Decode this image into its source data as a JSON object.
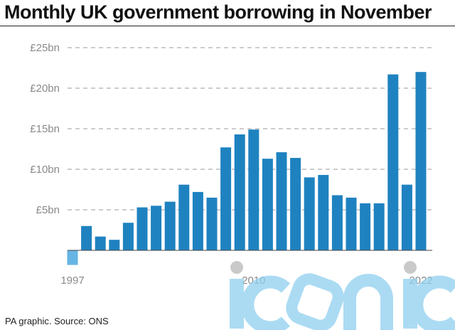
{
  "title": "Monthly UK government borrowing in November",
  "source": "PA graphic. Source: ONS",
  "watermark": "iconic",
  "colors": {
    "bar": "#1f82c0",
    "negative_bar": "#66b5e3",
    "grid": "#999999",
    "tick_text": "#8a8a8a",
    "watermark": "#8fd0f0"
  },
  "chart_data": {
    "type": "bar",
    "title": "Monthly UK government borrowing in November",
    "xlabel": "",
    "ylabel": "",
    "years": [
      1997,
      1998,
      1999,
      2000,
      2001,
      2002,
      2003,
      2004,
      2005,
      2006,
      2007,
      2008,
      2009,
      2010,
      2011,
      2012,
      2013,
      2014,
      2015,
      2016,
      2017,
      2018,
      2019,
      2020,
      2021,
      2022
    ],
    "values": [
      -1.8,
      3.0,
      1.7,
      1.3,
      3.4,
      5.3,
      5.5,
      6.0,
      8.1,
      7.2,
      6.5,
      12.7,
      14.3,
      14.9,
      11.3,
      12.1,
      11.4,
      9.0,
      9.3,
      6.8,
      6.5,
      5.8,
      5.8,
      21.7,
      8.1,
      22.0
    ],
    "x_tick_labels": [
      "1997",
      "2010",
      "2022"
    ],
    "y_ticks": [
      5,
      10,
      15,
      20,
      25
    ],
    "y_tick_labels": [
      "£5bn",
      "£10bn",
      "£15bn",
      "£20bn",
      "£25bn"
    ],
    "ylim": [
      -2,
      25
    ],
    "grid": true,
    "legend": "none"
  }
}
